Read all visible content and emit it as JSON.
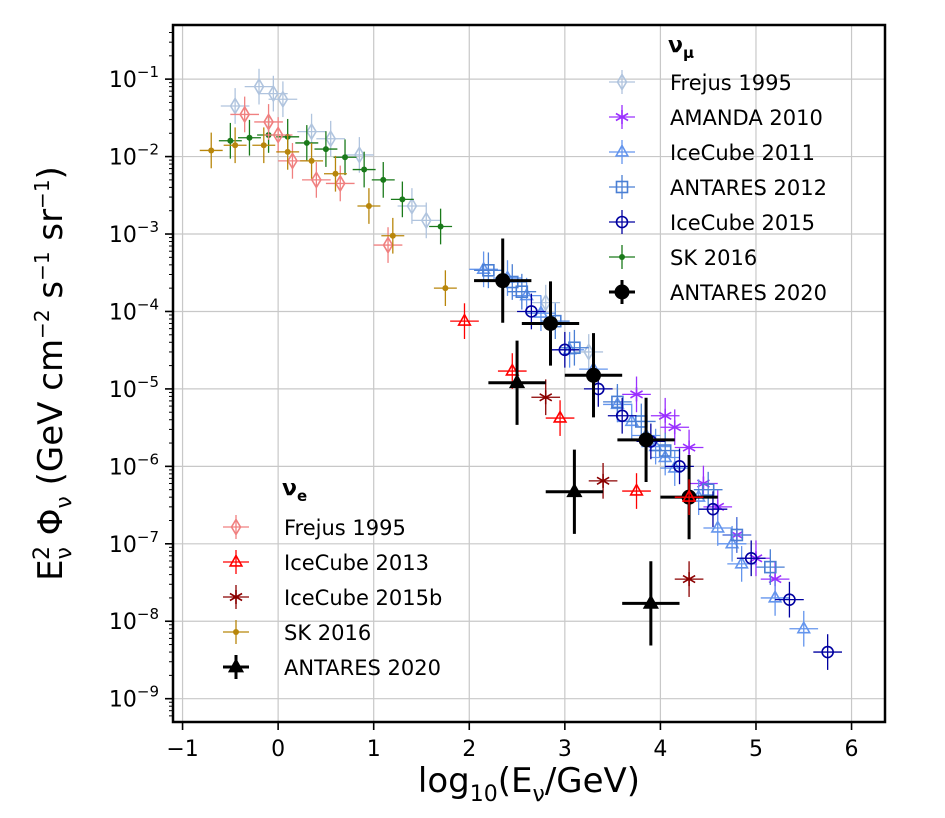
{
  "chart_data": {
    "type": "scatter",
    "x_scale": "linear",
    "y_scale": "log",
    "xlim": [
      -1.1,
      6.35
    ],
    "ylim": [
      5e-10,
      0.5
    ],
    "grid": true,
    "xlabel_parts": [
      "log",
      "10",
      "(E",
      "ν",
      "/GeV)"
    ],
    "ylabel_parts": [
      "E",
      "ν",
      "2",
      " Φ",
      "ν",
      " (GeV cm",
      "−2",
      " s",
      "−1",
      " sr",
      "−1",
      ")"
    ],
    "x_ticks": [
      {
        "value": -1,
        "label": "−1"
      },
      {
        "value": 0,
        "label": "0"
      },
      {
        "value": 1,
        "label": "1"
      },
      {
        "value": 2,
        "label": "2"
      },
      {
        "value": 3,
        "label": "3"
      },
      {
        "value": 4,
        "label": "4"
      },
      {
        "value": 5,
        "label": "5"
      },
      {
        "value": 6,
        "label": "6"
      }
    ],
    "y_ticks": [
      {
        "value": 1e-09,
        "base": "10",
        "exp": "−9"
      },
      {
        "value": 1e-08,
        "base": "10",
        "exp": "−8"
      },
      {
        "value": 1e-07,
        "base": "10",
        "exp": "−7"
      },
      {
        "value": 1e-06,
        "base": "10",
        "exp": "−6"
      },
      {
        "value": 1e-05,
        "base": "10",
        "exp": "−5"
      },
      {
        "value": 0.0001,
        "base": "10",
        "exp": "−4"
      },
      {
        "value": 0.001,
        "base": "10",
        "exp": "−3"
      },
      {
        "value": 0.01,
        "base": "10",
        "exp": "−2"
      },
      {
        "value": 0.1,
        "base": "10",
        "exp": "−1"
      }
    ],
    "legends": [
      {
        "title_main": "ν",
        "title_sub": "μ",
        "position": "top-right",
        "entries": [
          "Frejus 1995",
          "AMANDA 2010",
          "IceCube 2011",
          "ANTARES 2012",
          "IceCube 2015",
          "SK 2016",
          "ANTARES 2020"
        ]
      },
      {
        "title_main": "ν",
        "title_sub": "e",
        "position": "bottom-left",
        "entries": [
          "Frejus 1995",
          "IceCube 2013",
          "IceCube 2015b",
          "SK 2016",
          "ANTARES 2020"
        ]
      }
    ],
    "series": [
      {
        "name": "Frejus 1995",
        "flavor": "ν_μ",
        "color": "#b0c4de",
        "marker": "diamond-open",
        "points": [
          [
            -0.45,
            0.045
          ],
          [
            -0.2,
            0.08
          ],
          [
            -0.05,
            0.065
          ],
          [
            0.05,
            0.055
          ],
          [
            0.35,
            0.021
          ],
          [
            0.55,
            0.017
          ],
          [
            0.85,
            0.0105
          ],
          [
            1.4,
            0.0023
          ],
          [
            1.55,
            0.0015
          ],
          [
            2.8,
            0.00013
          ],
          [
            3.25,
            3e-05
          ]
        ]
      },
      {
        "name": "AMANDA 2010",
        "flavor": "ν_μ",
        "color": "#9b30ff",
        "marker": "star",
        "points": [
          [
            3.75,
            8.5e-06
          ],
          [
            4.05,
            4.5e-06
          ],
          [
            4.15,
            3.2e-06
          ],
          [
            4.3,
            1.75e-06
          ],
          [
            4.45,
            6e-07
          ],
          [
            4.6,
            3e-07
          ],
          [
            4.8,
            1.3e-07
          ],
          [
            5.0,
            6.5e-08
          ],
          [
            5.2,
            3.5e-08
          ]
        ]
      },
      {
        "name": "IceCube 2011",
        "flavor": "ν_μ",
        "color": "#6495ed",
        "marker": "triangle-open",
        "points": [
          [
            2.15,
            0.00035
          ],
          [
            2.4,
            0.00027
          ],
          [
            2.6,
            0.00016
          ],
          [
            2.75,
            9.5e-05
          ],
          [
            3.05,
            3.2e-05
          ],
          [
            3.3,
            1.8e-05
          ],
          [
            3.55,
            6.3e-06
          ],
          [
            3.7,
            3.8e-06
          ],
          [
            3.85,
            2.5e-06
          ],
          [
            3.95,
            1.8e-06
          ],
          [
            4.05,
            1.3e-06
          ],
          [
            4.15,
            9.5e-07
          ],
          [
            4.4,
            4e-07
          ],
          [
            4.6,
            1.6e-07
          ],
          [
            4.75,
            1e-07
          ],
          [
            4.85,
            5.5e-08
          ],
          [
            5.2,
            2e-08
          ],
          [
            5.5,
            8e-09
          ]
        ]
      },
      {
        "name": "ANTARES 2012",
        "flavor": "ν_μ",
        "color": "#4a7fd4",
        "marker": "square-open",
        "points": [
          [
            2.2,
            0.00034
          ],
          [
            2.45,
            0.00024
          ],
          [
            2.55,
            0.00018
          ],
          [
            2.9,
            7.5e-05
          ],
          [
            3.1,
            3.4e-05
          ],
          [
            3.55,
            6.8e-06
          ],
          [
            3.8,
            3.8e-06
          ],
          [
            4.05,
            1.6e-06
          ],
          [
            4.5,
            5e-07
          ],
          [
            4.8,
            1.3e-07
          ],
          [
            5.15,
            5e-08
          ]
        ]
      },
      {
        "name": "IceCube 2015",
        "flavor": "ν_μ",
        "color": "#0000a0",
        "marker": "circle-open",
        "points": [
          [
            2.65,
            0.0001
          ],
          [
            3.0,
            3.2e-05
          ],
          [
            3.35,
            1e-05
          ],
          [
            3.6,
            4.5e-06
          ],
          [
            3.9,
            2.1e-06
          ],
          [
            4.2,
            1e-06
          ],
          [
            4.55,
            2.8e-07
          ],
          [
            4.95,
            6.5e-08
          ],
          [
            5.35,
            1.9e-08
          ],
          [
            5.75,
            4e-09
          ]
        ]
      },
      {
        "name": "SK 2016",
        "flavor": "ν_μ",
        "color": "#1a7a1a",
        "marker": "dot",
        "points": [
          [
            -0.5,
            0.016
          ],
          [
            -0.3,
            0.0175
          ],
          [
            -0.1,
            0.019
          ],
          [
            0.1,
            0.018
          ],
          [
            0.3,
            0.015
          ],
          [
            0.5,
            0.0125
          ],
          [
            0.7,
            0.0098
          ],
          [
            0.9,
            0.0068
          ],
          [
            1.1,
            0.005
          ],
          [
            1.3,
            0.0028
          ],
          [
            1.7,
            0.00125
          ]
        ]
      },
      {
        "name": "ANTARES 2020",
        "flavor": "ν_μ",
        "color": "#000000",
        "marker": "filled-circle",
        "points": [
          [
            2.35,
            0.00025
          ],
          [
            2.85,
            7e-05
          ],
          [
            3.3,
            1.5e-05
          ],
          [
            3.85,
            2.2e-06
          ],
          [
            4.3,
            4e-07
          ]
        ]
      },
      {
        "name": "Frejus 1995",
        "flavor": "ν_e",
        "color": "#f08080",
        "marker": "diamond-open",
        "points": [
          [
            -0.35,
            0.035
          ],
          [
            -0.1,
            0.028
          ],
          [
            0.0,
            0.019
          ],
          [
            0.15,
            0.0088
          ],
          [
            0.4,
            0.005
          ],
          [
            0.65,
            0.0045
          ],
          [
            1.15,
            0.00072
          ]
        ]
      },
      {
        "name": "IceCube 2013",
        "flavor": "ν_e",
        "color": "#ff0000",
        "marker": "triangle-open",
        "points": [
          [
            1.95,
            7.5e-05
          ],
          [
            2.45,
            1.7e-05
          ],
          [
            2.95,
            4.2e-06
          ],
          [
            3.75,
            4.8e-07
          ],
          [
            4.3,
            4e-07
          ]
        ]
      },
      {
        "name": "IceCube 2015b",
        "flavor": "ν_e",
        "color": "#8b0000",
        "marker": "star",
        "points": [
          [
            2.8,
            7.8e-06
          ],
          [
            3.4,
            6.5e-07
          ],
          [
            4.3,
            3.5e-08
          ]
        ]
      },
      {
        "name": "SK 2016",
        "flavor": "ν_e",
        "color": "#b8860b",
        "marker": "dot",
        "points": [
          [
            -0.7,
            0.012
          ],
          [
            -0.45,
            0.014
          ],
          [
            -0.15,
            0.014
          ],
          [
            0.1,
            0.0115
          ],
          [
            0.35,
            0.0088
          ],
          [
            0.6,
            0.006
          ],
          [
            0.95,
            0.0023
          ],
          [
            1.2,
            0.00095
          ],
          [
            1.75,
            0.0002
          ]
        ]
      },
      {
        "name": "ANTARES 2020",
        "flavor": "ν_e",
        "color": "#000000",
        "marker": "filled-triangle",
        "points": [
          [
            2.5,
            1.2e-05
          ],
          [
            3.1,
            4.7e-07
          ],
          [
            3.9,
            1.7e-08
          ]
        ]
      }
    ]
  }
}
